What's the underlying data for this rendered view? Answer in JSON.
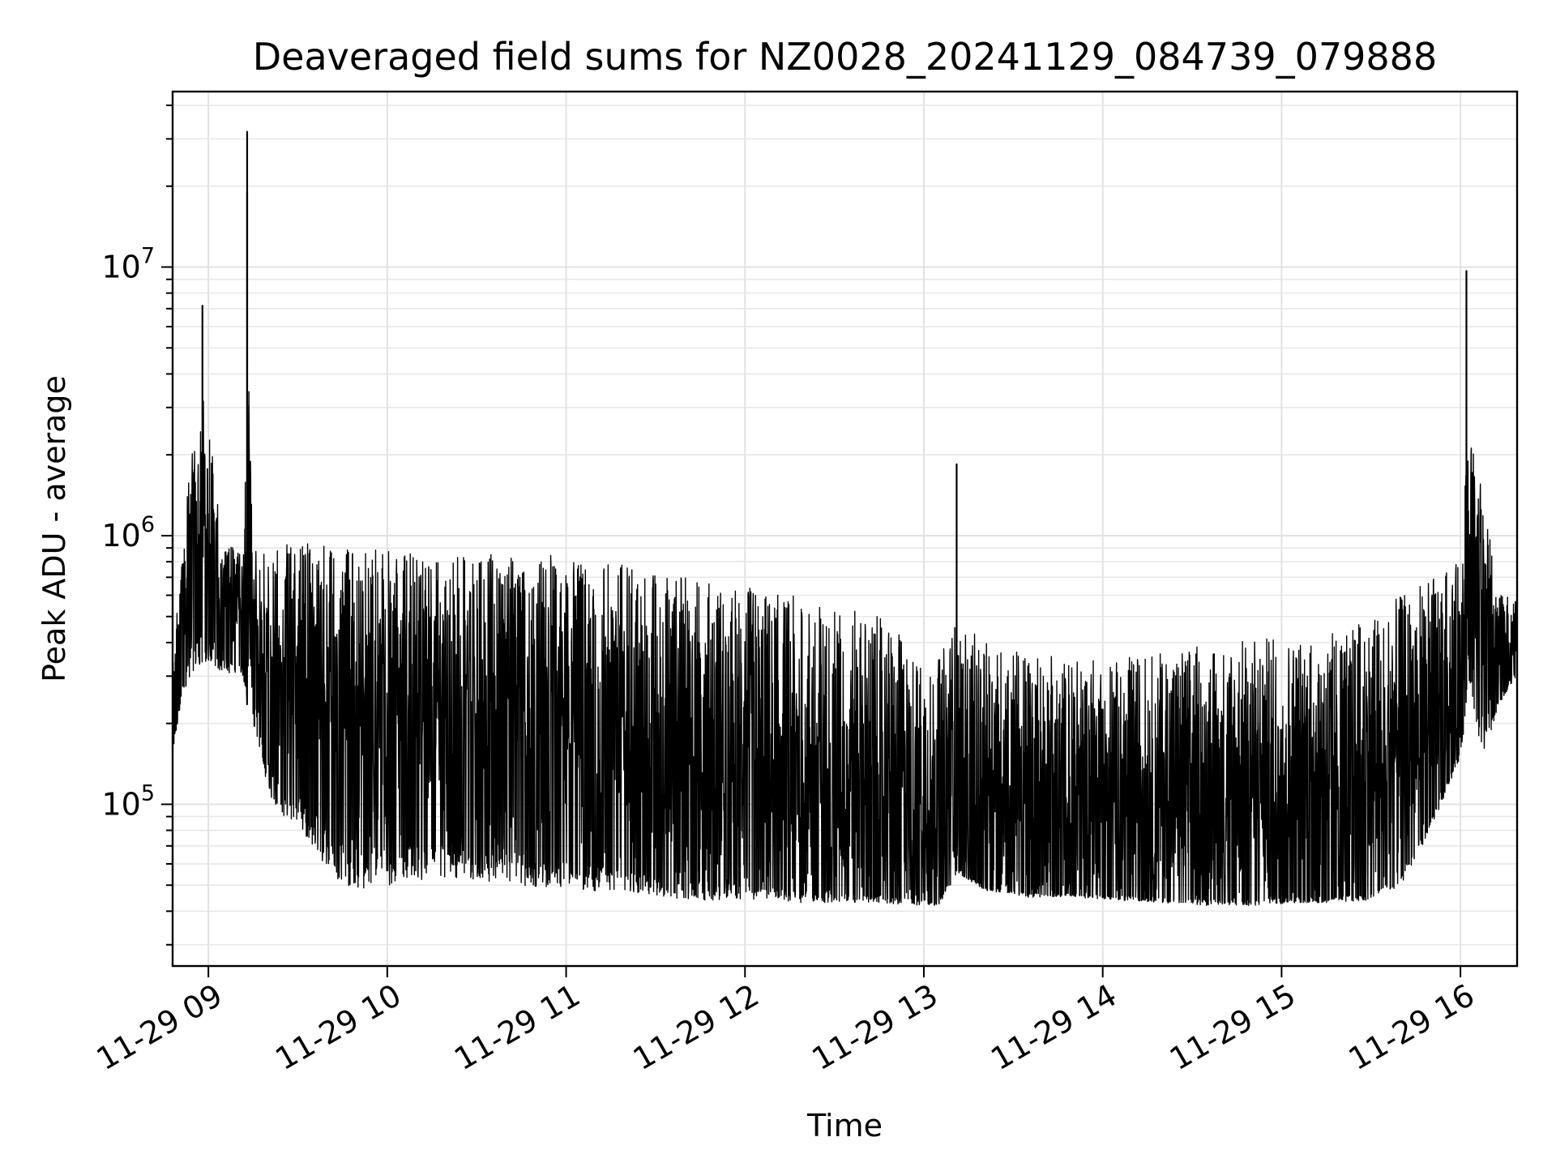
{
  "chart_data": {
    "type": "line",
    "title": "Deaveraged field sums for NZ0028_20241129_084739_079888",
    "xlabel": "Time",
    "ylabel": "Peak ADU - average",
    "xscale": "time",
    "yscale": "log",
    "xlim": [
      "2024-11-29 08:48",
      "2024-11-29 16:19"
    ],
    "ylim": [
      25000,
      45000000
    ],
    "grid": true,
    "legend": "none",
    "line_color": "#000000",
    "x_ticks": [
      "11-29 09",
      "11-29 10",
      "11-29 11",
      "11-29 12",
      "11-29 13",
      "11-29 14",
      "11-29 15",
      "11-29 16"
    ],
    "y_ticks": [
      {
        "base": "10",
        "exp": "5",
        "value": 100000
      },
      {
        "base": "10",
        "exp": "6",
        "value": 1000000
      },
      {
        "base": "10",
        "exp": "7",
        "value": 10000000
      }
    ],
    "series": [
      {
        "x": [
          "2024-11-29 08:48",
          "2024-11-29 08:51",
          "2024-11-29 08:54",
          "2024-11-29 08:56",
          "2024-11-29 08:58",
          "2024-11-29 09:00",
          "2024-11-29 09:03",
          "2024-11-29 09:05",
          "2024-11-29 09:08",
          "2024-11-29 09:10",
          "2024-11-29 09:12",
          "2024-11-29 09:13",
          "2024-11-29 09:15",
          "2024-11-29 09:18",
          "2024-11-29 09:20",
          "2024-11-29 09:25",
          "2024-11-29 09:30",
          "2024-11-29 09:35",
          "2024-11-29 09:40",
          "2024-11-29 09:45",
          "2024-11-29 09:50",
          "2024-11-29 10:00",
          "2024-11-29 10:10",
          "2024-11-29 10:20",
          "2024-11-29 10:30",
          "2024-11-29 10:45",
          "2024-11-29 11:00",
          "2024-11-29 11:15",
          "2024-11-29 11:30",
          "2024-11-29 11:45",
          "2024-11-29 12:00",
          "2024-11-29 12:15",
          "2024-11-29 12:30",
          "2024-11-29 12:45",
          "2024-11-29 12:55",
          "2024-11-29 13:05",
          "2024-11-29 13:11",
          "2024-11-29 13:20",
          "2024-11-29 13:35",
          "2024-11-29 13:50",
          "2024-11-29 14:05",
          "2024-11-29 14:20",
          "2024-11-29 14:35",
          "2024-11-29 14:50",
          "2024-11-29 15:05",
          "2024-11-29 15:20",
          "2024-11-29 15:30",
          "2024-11-29 15:40",
          "2024-11-29 15:50",
          "2024-11-29 16:00",
          "2024-11-29 16:02",
          "2024-11-29 16:05",
          "2024-11-29 16:08",
          "2024-11-29 16:12",
          "2024-11-29 16:16",
          "2024-11-29 16:19"
        ],
        "y_low": [
          150000,
          250000,
          300000,
          320000,
          330000,
          340000,
          320000,
          300000,
          300000,
          300000,
          280000,
          220000,
          200000,
          150000,
          110000,
          90000,
          80000,
          70000,
          55000,
          50000,
          48000,
          50000,
          52000,
          52000,
          52000,
          50000,
          48000,
          47000,
          45000,
          44000,
          44000,
          43000,
          43000,
          43000,
          42000,
          42000,
          55000,
          48000,
          45000,
          45000,
          44000,
          43000,
          42000,
          42000,
          43000,
          43000,
          44000,
          50000,
          80000,
          150000,
          220000,
          200000,
          150000,
          220000,
          270000,
          300000
        ],
        "y_high": [
          350000,
          800000,
          2000000,
          3000000,
          3500000,
          2500000,
          1500000,
          1000000,
          950000,
          900000,
          900000,
          6000000,
          950000,
          900000,
          950000,
          950000,
          950000,
          950000,
          920000,
          900000,
          900000,
          880000,
          850000,
          850000,
          850000,
          850000,
          850000,
          800000,
          750000,
          700000,
          650000,
          600000,
          550000,
          500000,
          400000,
          350000,
          500000,
          400000,
          380000,
          350000,
          350000,
          370000,
          400000,
          420000,
          430000,
          450000,
          500000,
          600000,
          700000,
          800000,
          2500000,
          2000000,
          1500000,
          600000,
          600000,
          600000
        ],
        "y_base": [
          200000,
          330000,
          700000,
          900000,
          900000,
          800000,
          600000,
          500000,
          480000,
          460000,
          440000,
          400000,
          380000,
          350000,
          330000,
          300000,
          280000,
          250000,
          230000,
          220000,
          210000,
          200000,
          190000,
          180000,
          170000,
          150000,
          130000,
          110000,
          95000,
          85000,
          75000,
          68000,
          60000,
          56000,
          54000,
          53000,
          70000,
          55000,
          53000,
          52000,
          52000,
          52000,
          52000,
          52000,
          53000,
          54000,
          56000,
          70000,
          110000,
          220000,
          900000,
          800000,
          500000,
          300000,
          350000,
          420000
        ]
      }
    ],
    "annotations": [
      {
        "x": "2024-11-29 09:13",
        "y": 32000000,
        "label": ""
      },
      {
        "x": "2024-11-29 09:13",
        "y": 19000000,
        "label": ""
      },
      {
        "x": "2024-11-29 08:58",
        "y": 7200000,
        "label": ""
      },
      {
        "x": "2024-11-29 16:02",
        "y": 9700000,
        "label": ""
      },
      {
        "x": "2024-11-29 13:11",
        "y": 1850000,
        "label": ""
      }
    ]
  }
}
